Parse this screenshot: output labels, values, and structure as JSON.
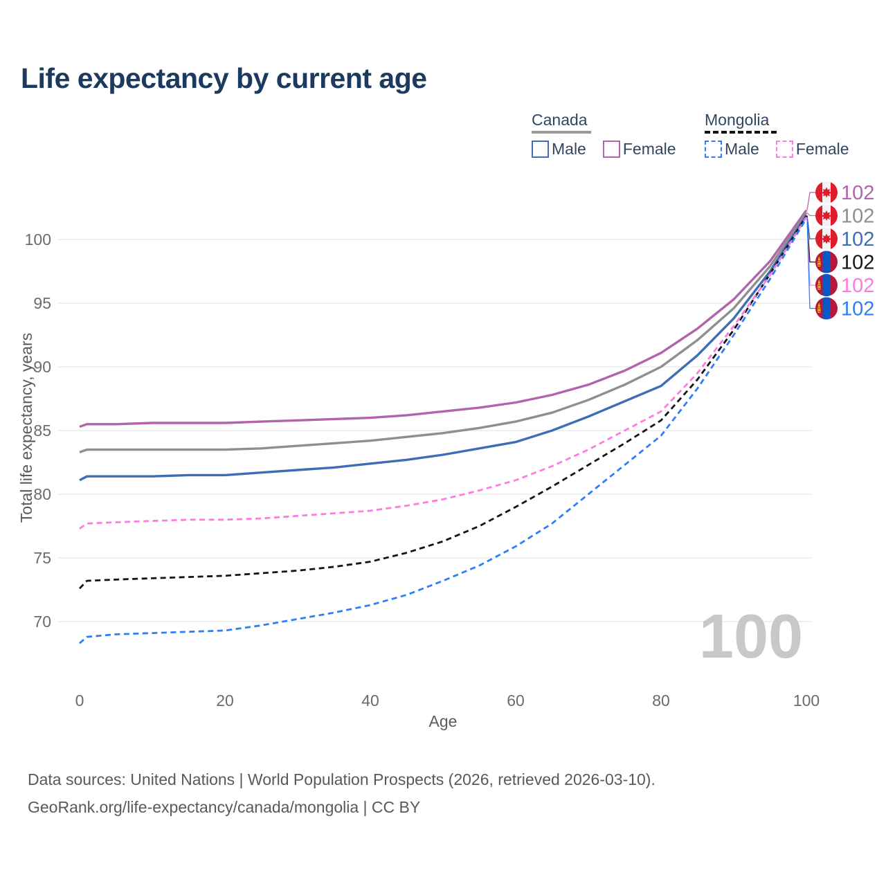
{
  "page": {
    "title": "Life expectancy by current age",
    "watermark": "100"
  },
  "legend": {
    "groups": [
      {
        "label": "Canada",
        "line_style": "solid",
        "underline_color": "#9a9a9a",
        "items": [
          {
            "label": "Male",
            "color": "#3e6db6"
          },
          {
            "label": "Female",
            "color": "#b164ab"
          }
        ]
      },
      {
        "label": "Mongolia",
        "line_style": "dashed",
        "underline_color": "#141414",
        "items": [
          {
            "label": "Male",
            "color": "#2e7ef7"
          },
          {
            "label": "Female",
            "color": "#ff7ae1"
          }
        ]
      }
    ]
  },
  "chart_data": {
    "type": "line",
    "title": "Life expectancy by current age",
    "xlabel": "Age",
    "ylabel": "Total life expectancy, years",
    "xlim": [
      0,
      100
    ],
    "ylim": [
      66.5,
      103
    ],
    "x_ticks": [
      0,
      20,
      40,
      60,
      80,
      100
    ],
    "y_ticks": [
      70,
      75,
      80,
      85,
      90,
      95,
      100
    ],
    "grid": "horizontal-only",
    "legend_position": "top-right",
    "x": [
      0,
      1,
      5,
      10,
      15,
      20,
      25,
      30,
      35,
      40,
      45,
      50,
      55,
      60,
      65,
      70,
      75,
      80,
      85,
      90,
      95,
      100
    ],
    "series": [
      {
        "name": "Canada Female",
        "flag": "canada",
        "color": "#b164ab",
        "dash": "solid",
        "end_label": "102",
        "values": [
          85.3,
          85.5,
          85.5,
          85.6,
          85.6,
          85.6,
          85.7,
          85.8,
          85.9,
          86.0,
          86.2,
          86.5,
          86.8,
          87.2,
          87.8,
          88.6,
          89.7,
          91.1,
          93.0,
          95.3,
          98.3,
          102.3
        ]
      },
      {
        "name": "Canada Both Sexes",
        "flag": "canada",
        "color": "#8f8f8f",
        "dash": "solid",
        "end_label": "102",
        "values": [
          83.3,
          83.5,
          83.5,
          83.5,
          83.5,
          83.5,
          83.6,
          83.8,
          84.0,
          84.2,
          84.5,
          84.8,
          85.2,
          85.7,
          86.4,
          87.4,
          88.6,
          90.0,
          92.1,
          94.6,
          97.9,
          102.1
        ]
      },
      {
        "name": "Canada Male",
        "flag": "canada",
        "color": "#3e6db6",
        "dash": "solid",
        "end_label": "102",
        "values": [
          81.1,
          81.4,
          81.4,
          81.4,
          81.5,
          81.5,
          81.7,
          81.9,
          82.1,
          82.4,
          82.7,
          83.1,
          83.6,
          84.1,
          85.0,
          86.1,
          87.3,
          88.5,
          90.9,
          93.8,
          97.5,
          101.9
        ]
      },
      {
        "name": "Mongolia Both Sexes",
        "flag": "mongolia",
        "color": "#141414",
        "dash": "dashed",
        "end_label": "102",
        "values": [
          72.6,
          73.2,
          73.3,
          73.4,
          73.5,
          73.6,
          73.8,
          74.0,
          74.3,
          74.7,
          75.4,
          76.3,
          77.5,
          79.0,
          80.6,
          82.3,
          84.0,
          85.8,
          89.0,
          92.9,
          97.3,
          101.85
        ]
      },
      {
        "name": "Mongolia Female",
        "flag": "mongolia",
        "color": "#ff7ae1",
        "dash": "dashed",
        "end_label": "102",
        "values": [
          77.3,
          77.7,
          77.8,
          77.9,
          78.0,
          78.0,
          78.1,
          78.3,
          78.5,
          78.7,
          79.1,
          79.6,
          80.3,
          81.1,
          82.2,
          83.5,
          85.0,
          86.5,
          89.5,
          93.2,
          97.2,
          101.75
        ]
      },
      {
        "name": "Mongolia Male",
        "flag": "mongolia",
        "color": "#2e7ef7",
        "dash": "dashed",
        "end_label": "102",
        "values": [
          68.3,
          68.8,
          69.0,
          69.1,
          69.2,
          69.3,
          69.7,
          70.2,
          70.7,
          71.3,
          72.1,
          73.2,
          74.4,
          75.9,
          77.7,
          80.0,
          82.3,
          84.6,
          88.3,
          92.5,
          96.9,
          101.65
        ]
      }
    ]
  },
  "footer": {
    "line1": "Data sources: United Nations | World Population Prospects (2026, retrieved 2026-03-10).",
    "line2": "GeoRank.org/life-expectancy/canada/mongolia | CC BY"
  }
}
